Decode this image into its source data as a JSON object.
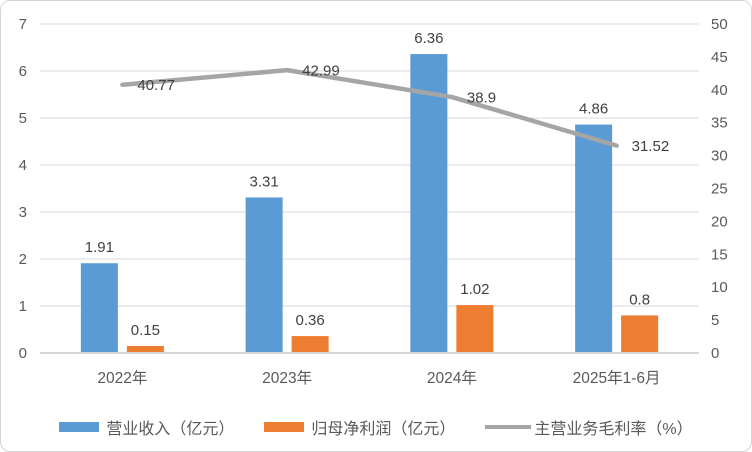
{
  "chart_data": {
    "type": "combo-bar-line",
    "title": "",
    "categories": [
      "2022年",
      "2023年",
      "2024年",
      "2025年1-6月"
    ],
    "series": [
      {
        "name": "营业收入（亿元）",
        "type": "bar",
        "axis": "left",
        "color": "#5B9BD5",
        "values": [
          1.91,
          3.31,
          6.36,
          4.86
        ],
        "labels": [
          "1.91",
          "3.31",
          "6.36",
          "4.86"
        ]
      },
      {
        "name": "归母净利润（亿元）",
        "type": "bar",
        "axis": "left",
        "color": "#ED7D31",
        "values": [
          0.15,
          0.36,
          1.02,
          0.8
        ],
        "labels": [
          "0.15",
          "0.36",
          "1.02",
          "0.8"
        ]
      },
      {
        "name": "主营业务毛利率（%）",
        "type": "line",
        "axis": "right",
        "color": "#A5A5A5",
        "values": [
          40.77,
          42.99,
          38.9,
          31.52
        ],
        "labels": [
          "40.77",
          "42.99",
          "38.9",
          "31.52"
        ]
      }
    ],
    "axes": {
      "left": {
        "min": 0,
        "max": 7,
        "step": 1,
        "ticks": [
          "0",
          "1",
          "2",
          "3",
          "4",
          "5",
          "6",
          "7"
        ]
      },
      "right": {
        "min": 0,
        "max": 50,
        "step": 5,
        "ticks": [
          "0",
          "5",
          "10",
          "15",
          "20",
          "25",
          "30",
          "35",
          "40",
          "45",
          "50"
        ]
      }
    },
    "grid": true,
    "legend_position": "bottom",
    "colors": {
      "gridline": "#D9D9D9",
      "axis_line": "#D6D6D6",
      "axis_text": "#595959",
      "data_label_text": "#404040",
      "category_text": "#595959",
      "legend_text": "#595959",
      "border": "#D5D5D5",
      "background": "#FFFFFF"
    }
  }
}
